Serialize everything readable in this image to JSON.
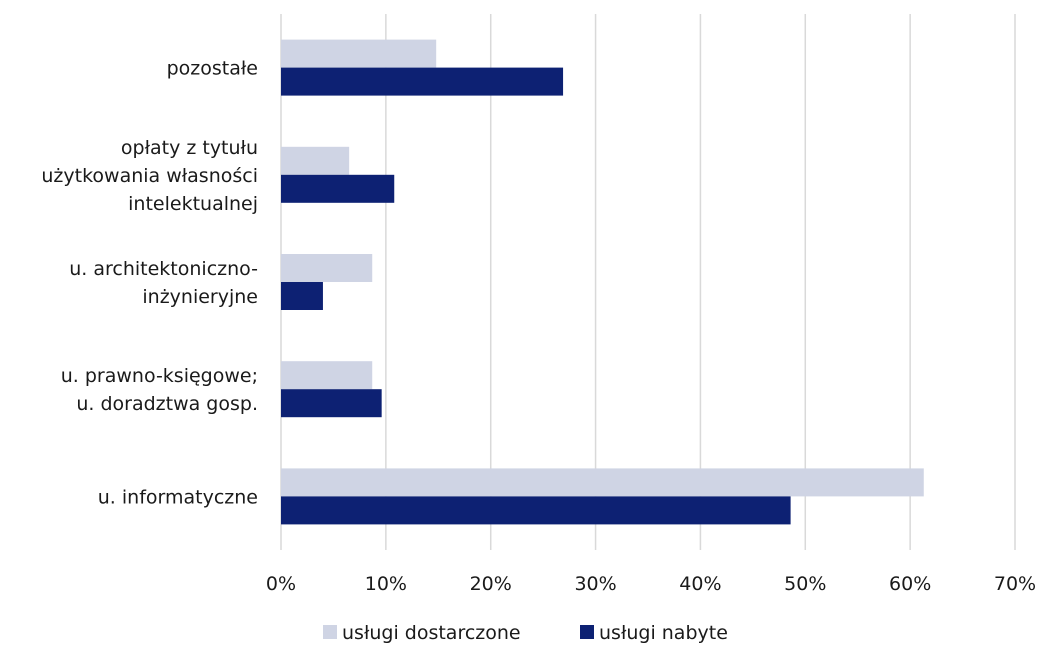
{
  "chart_data": {
    "type": "bar",
    "orientation": "horizontal",
    "categories": [
      [
        "pozostałe"
      ],
      [
        "opłaty z tytułu",
        "użytkowania własności",
        "intelektualnej"
      ],
      [
        "u. architektoniczno-",
        "inżynieryjne"
      ],
      [
        "u. prawno-księgowe;",
        "u. doradztwa gosp."
      ],
      [
        "u. informatyczne"
      ]
    ],
    "series": [
      {
        "name": "usługi dostarczone",
        "color": "#cfd4e4",
        "values": [
          14.8,
          6.5,
          8.7,
          8.7,
          61.3
        ]
      },
      {
        "name": "usługi nabyte",
        "color": "#0d2173",
        "values": [
          26.9,
          10.8,
          4.0,
          9.6,
          48.6
        ]
      }
    ],
    "xlim": [
      0,
      70
    ],
    "xticks": [
      "0%",
      "10%",
      "20%",
      "30%",
      "40%",
      "50%",
      "60%",
      "70%"
    ],
    "grid": true,
    "legend": "bottom"
  }
}
